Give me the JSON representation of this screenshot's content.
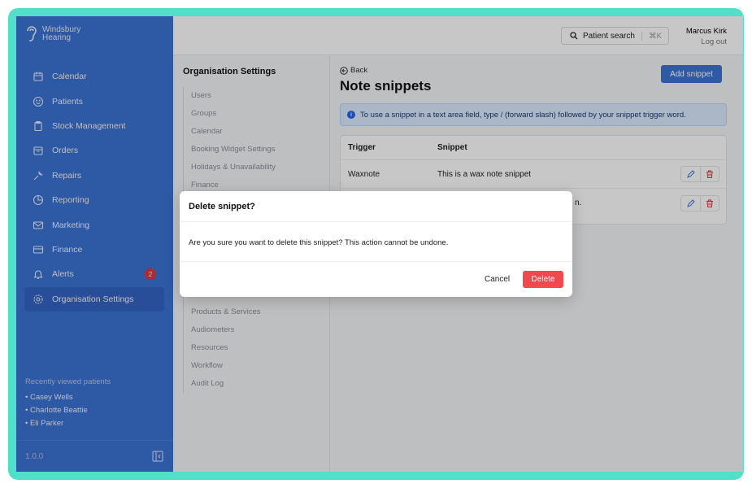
{
  "brand": {
    "line1": "Windsbury",
    "line2": "Hearing"
  },
  "sidebar": {
    "items": [
      {
        "label": "Calendar",
        "icon": "calendar-icon"
      },
      {
        "label": "Patients",
        "icon": "smile-icon"
      },
      {
        "label": "Stock Management",
        "icon": "clipboard-icon"
      },
      {
        "label": "Orders",
        "icon": "box-icon"
      },
      {
        "label": "Repairs",
        "icon": "wrench-icon"
      },
      {
        "label": "Reporting",
        "icon": "pie-chart-icon"
      },
      {
        "label": "Marketing",
        "icon": "mail-icon"
      },
      {
        "label": "Finance",
        "icon": "credit-card-icon"
      },
      {
        "label": "Alerts",
        "icon": "bell-icon",
        "badge": "2"
      },
      {
        "label": "Organisation Settings",
        "icon": "gear-icon",
        "active": true
      }
    ],
    "recent_title": "Recently viewed patients",
    "recent": [
      "• Casey Wells",
      "• Charlotte Beattie",
      "• Eli Parker"
    ],
    "version": "1.0.0"
  },
  "topbar": {
    "search_label": "Patient search",
    "shortcut": "⌘K",
    "user": "Marcus Kirk",
    "logout": "Log out"
  },
  "subnav": {
    "title": "Organisation Settings",
    "items_top": [
      "Users",
      "Groups",
      "Calendar",
      "Booking Widget Settings",
      "Holidays & Unavailability",
      "Finance"
    ],
    "items_bottom": [
      "Products & Services",
      "Audiometers",
      "Resources",
      "Workflow",
      "Audit Log"
    ]
  },
  "main": {
    "back": "Back",
    "title": "Note snippets",
    "add_button": "Add snippet",
    "info": "To use a snippet in a text area field, type / (forward slash) followed by your snippet trigger word.",
    "columns": [
      "Trigger",
      "Snippet"
    ],
    "rows": [
      {
        "trigger": "Waxnote",
        "snippet": "This is a wax note snippet"
      },
      {
        "trigger": "",
        "snippet": "n."
      }
    ]
  },
  "modal": {
    "title": "Delete snippet?",
    "body": "Are you sure you want to delete this snippet? This action cannot be undone.",
    "cancel": "Cancel",
    "delete": "Delete"
  },
  "colors": {
    "primary": "#3b72d4",
    "danger": "#f04a4f",
    "frame": "#52dfc9"
  }
}
